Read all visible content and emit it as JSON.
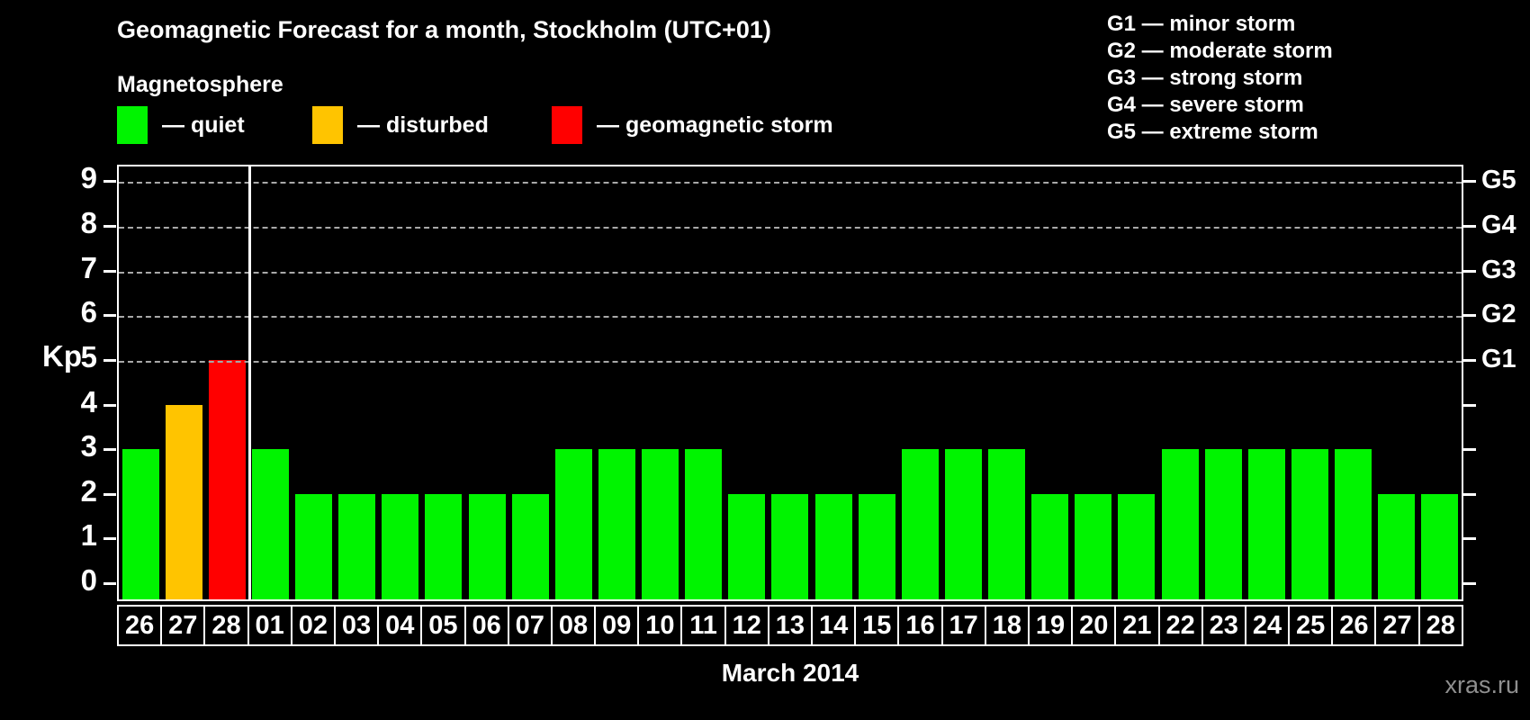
{
  "title": "Geomagnetic Forecast for a month, Stockholm (UTC+01)",
  "subtitle": "Magnetosphere",
  "legend": {
    "items": [
      {
        "status": "quiet",
        "label": "— quiet",
        "color": "#00f400"
      },
      {
        "status": "disturbed",
        "label": "— disturbed",
        "color": "#ffc400"
      },
      {
        "status": "storm",
        "label": "— geomagnetic storm",
        "color": "#ff0000"
      }
    ]
  },
  "g_legend": [
    "G1 — minor storm",
    "G2 — moderate storm",
    "G3 — strong storm",
    "G4 — severe storm",
    "G5 — extreme storm"
  ],
  "axes": {
    "y_label": "Kp",
    "y_ticks": [
      0,
      1,
      2,
      3,
      4,
      5,
      6,
      7,
      8,
      9
    ],
    "right_labels": [
      {
        "level": 5,
        "label": "G1"
      },
      {
        "level": 6,
        "label": "G2"
      },
      {
        "level": 7,
        "label": "G3"
      },
      {
        "level": 8,
        "label": "G4"
      },
      {
        "level": 9,
        "label": "G5"
      }
    ],
    "x_label": "March 2014"
  },
  "watermark": "xras.ru",
  "chart_data": {
    "type": "bar",
    "title": "Geomagnetic Forecast for a month, Stockholm (UTC+01)",
    "ylabel": "Kp",
    "ylim": [
      0,
      9
    ],
    "gridlines_at": [
      5,
      6,
      7,
      8,
      9
    ],
    "grid": "dashed-horizontal",
    "legend_position": "top",
    "prev_month_day_count": 3,
    "categories": [
      "26",
      "27",
      "28",
      "01",
      "02",
      "03",
      "04",
      "05",
      "06",
      "07",
      "08",
      "09",
      "10",
      "11",
      "12",
      "13",
      "14",
      "15",
      "16",
      "17",
      "18",
      "19",
      "20",
      "21",
      "22",
      "23",
      "24",
      "25",
      "26",
      "27",
      "28"
    ],
    "values": [
      3,
      4,
      5,
      3,
      2,
      2,
      2,
      2,
      2,
      2,
      3,
      3,
      3,
      3,
      2,
      2,
      2,
      2,
      3,
      3,
      3,
      2,
      2,
      2,
      3,
      3,
      3,
      3,
      3,
      2,
      2
    ],
    "statuses": [
      "quiet",
      "disturbed",
      "storm",
      "quiet",
      "quiet",
      "quiet",
      "quiet",
      "quiet",
      "quiet",
      "quiet",
      "quiet",
      "quiet",
      "quiet",
      "quiet",
      "quiet",
      "quiet",
      "quiet",
      "quiet",
      "quiet",
      "quiet",
      "quiet",
      "quiet",
      "quiet",
      "quiet",
      "quiet",
      "quiet",
      "quiet",
      "quiet",
      "quiet",
      "quiet",
      "quiet"
    ]
  }
}
